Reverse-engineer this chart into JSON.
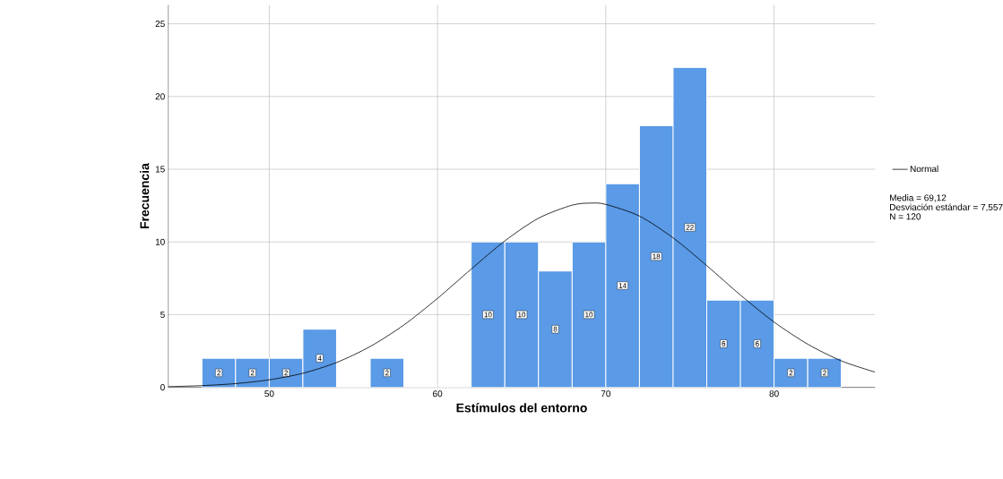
{
  "chart_data": {
    "type": "histogram",
    "xlabel": "Estímulos del entorno",
    "ylabel": "Frecuencia",
    "xlim": [
      44,
      86
    ],
    "ylim": [
      0,
      26.3
    ],
    "xticks": [
      50,
      60,
      70,
      80
    ],
    "yticks": [
      0,
      5,
      10,
      15,
      20,
      25
    ],
    "grid": true,
    "legend": "right",
    "series": [
      {
        "color": "#5a9ae6",
        "bins": [
          46,
          48,
          50,
          52,
          54,
          56,
          58,
          60,
          62,
          64,
          66,
          68,
          70,
          72,
          74,
          76,
          78,
          80,
          82,
          84
        ],
        "values": [
          2,
          2,
          2,
          4,
          0,
          2,
          0,
          0,
          10,
          10,
          8,
          10,
          14,
          18,
          22,
          6,
          6,
          2,
          2
        ],
        "value_labels": [
          "2",
          "2",
          "2",
          "4",
          null,
          "2",
          null,
          null,
          "10",
          "10",
          "8",
          "10",
          "14",
          "18",
          "22",
          "6",
          "6",
          "2",
          "2"
        ]
      },
      {
        "type": "line",
        "name": "Normal",
        "color": "#000000",
        "x": [
          44,
          46,
          48,
          50,
          52,
          54,
          56,
          58,
          60,
          62,
          64,
          66,
          68,
          69.12,
          70,
          72,
          74,
          76,
          78,
          80,
          82,
          84,
          86
        ],
        "values": [
          0.05,
          0.12,
          0.26,
          0.52,
          0.97,
          1.71,
          2.81,
          4.29,
          6.12,
          8.13,
          10.07,
          11.63,
          12.53,
          12.67,
          12.58,
          11.78,
          10.28,
          8.37,
          6.35,
          4.49,
          2.97,
          1.82,
          1.05
        ]
      }
    ],
    "annotations": [
      "Media = 69,12",
      "Desviación estándar = 7,557",
      "N = 120"
    ]
  }
}
